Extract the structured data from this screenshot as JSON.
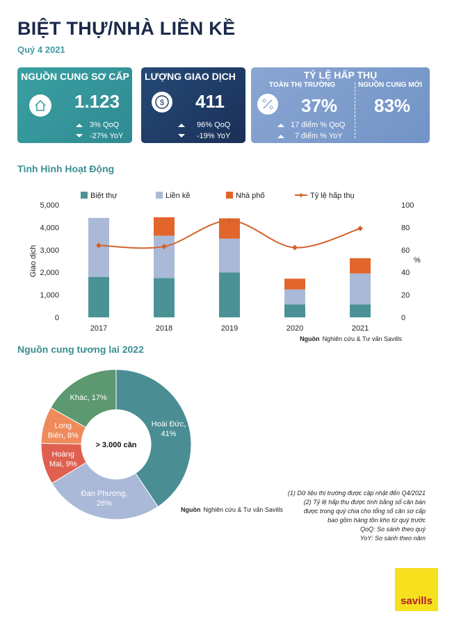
{
  "header": {
    "title": "BIỆT THỰ/NHÀ LIỀN KỀ",
    "subtitle": "Quý 4 2021"
  },
  "cards": [
    {
      "title": "NGUỒN CUNG SƠ CẤP",
      "value": "1.123",
      "changes": [
        "3% QoQ",
        "-27% YoY"
      ]
    },
    {
      "title": "LƯỢNG GIAO DỊCH",
      "value": "411",
      "changes": [
        "96% QoQ",
        "-19% YoY"
      ]
    },
    {
      "title": "TỶ LỆ HẤP THỤ",
      "panels": [
        {
          "title": "TOÀN THỊ TRƯỜNG",
          "value": "37%",
          "changes": [
            "17 điểm % QoQ",
            "7 điểm % YoY"
          ]
        },
        {
          "title": "NGUỒN CUNG MỚI",
          "value": "83%"
        }
      ]
    }
  ],
  "chart_data": [
    {
      "type": "bar",
      "title": "Tình Hình Hoạt Động",
      "categories": [
        "2017",
        "2018",
        "2019",
        "2020",
        "2021"
      ],
      "stacked": true,
      "ylabel": "Giao dịch",
      "y2label": "%",
      "ylim": [
        0,
        5000
      ],
      "yticks": [
        0,
        {
          "value": 1000,
          "label": "1,000"
        },
        {
          "value": 2000,
          "label": "2,000"
        },
        {
          "value": 3000,
          "label": "3,000"
        },
        {
          "value": 4000,
          "label": "4,000"
        },
        {
          "value": 5000,
          "label": "5,000"
        }
      ],
      "y2lim": [
        0,
        100
      ],
      "y2ticks": [
        0,
        20,
        40,
        60,
        80,
        100
      ],
      "legend": "top",
      "series": [
        {
          "name": "Biệt thự",
          "color": "#4b9296",
          "values": [
            1800,
            1750,
            2000,
            580,
            580
          ]
        },
        {
          "name": "Liền kề",
          "color": "#aab9d7",
          "values": [
            2620,
            1880,
            1500,
            660,
            1370
          ]
        },
        {
          "name": "Nhà phố",
          "color": "#e2652b",
          "values": [
            0,
            820,
            900,
            480,
            680
          ]
        },
        {
          "name": "Tỷ lệ hấp thụ",
          "color": "#d4622c",
          "axis": "y2",
          "values": [
            64,
            63,
            86,
            62,
            79
          ]
        }
      ],
      "source_label": "Nguồn",
      "source": "Nghiên cứu & Tư vấn Savills"
    },
    {
      "type": "pie",
      "title": "Nguồn cung tương lai 2022",
      "donut": true,
      "center_label": "> 3.000 căn",
      "values": [
        41,
        26,
        9,
        8,
        17
      ],
      "labels": [
        [
          "Hoài Đức,",
          "41%"
        ],
        [
          "Đan Phượng,",
          "26%"
        ],
        [
          "Hoàng",
          "Mai, 9%"
        ],
        [
          "Long",
          "Biên, 8%"
        ],
        [
          "Khác, 17%"
        ]
      ],
      "colors": [
        "#4a8e94",
        "#aab9d7",
        "#e0604f",
        "#ef8a5b",
        "#5c9870"
      ],
      "source_label": "Nguồn",
      "source": "Nghiên cứu & Tư vấn Savills"
    }
  ],
  "notes": [
    "(1)  Dữ liệu thị trường được cập nhật đến Q4/2021",
    "(2)  Tỷ lệ hấp thụ được tính bằng số căn bán",
    "được trong quý chia cho tổng số căn sơ cấp",
    "bao gồm hàng tồn kho từ quý trước",
    "QoQ: So sánh theo quý",
    "YoY: So sánh theo năm"
  ],
  "logo": "savills"
}
